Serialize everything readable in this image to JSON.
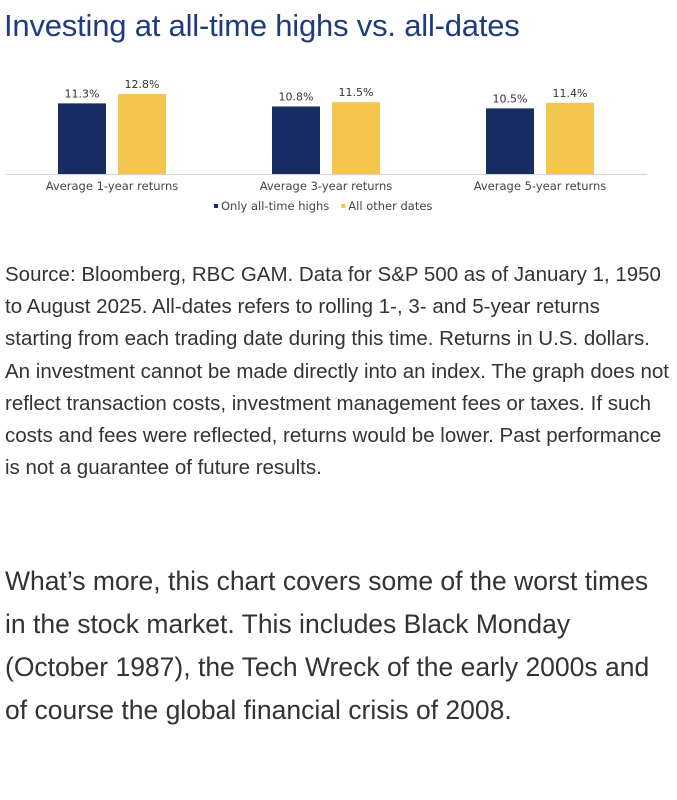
{
  "page_title": "Investing at all-time highs vs. all-dates",
  "chart_data": {
    "type": "bar",
    "title": "Investing at all-time highs vs. all-dates",
    "categories": [
      "Average 1-year returns",
      "Average 3-year returns",
      "Average 5-year returns"
    ],
    "series": [
      {
        "name": "Only all-time highs",
        "color": "#162c62",
        "values": [
          11.3,
          10.8,
          10.5
        ],
        "labels": [
          "11.3%",
          "10.8%",
          "10.5%"
        ]
      },
      {
        "name": "All other dates",
        "color": "#f5c64e",
        "values": [
          12.8,
          11.5,
          11.4
        ],
        "labels": [
          "12.8%",
          "11.5%",
          "11.4%"
        ]
      }
    ],
    "unit": "%",
    "legend_position": "bottom-center",
    "grid": false
  },
  "source_text": "Source: Bloomberg, RBC GAM. Data for S&P 500 as of January 1, 1950 to August 2025. All-dates refers to rolling 1-, 3- and 5-year returns starting from each trading date during this time. Returns in U.S. dollars. An investment cannot be made directly into an index. The graph does not reflect transaction costs, investment management fees or taxes. If such costs and fees were reflected, returns would be lower. Past performance is not a guarantee of future results.",
  "paragraph_text": "What’s more, this chart covers some of the worst times in the stock market. This includes Black Monday (October 1987), the Tech Wreck of the early 2000s and of course the global financial crisis of 2008."
}
